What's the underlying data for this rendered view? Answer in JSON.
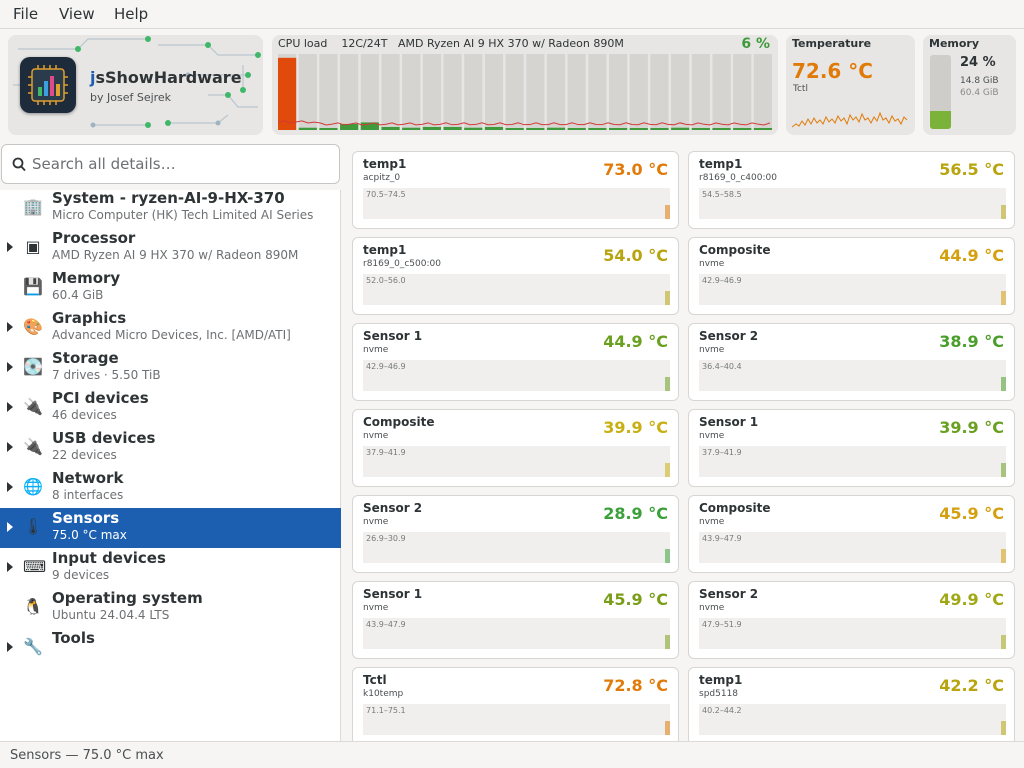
{
  "menu": {
    "file": "File",
    "view": "View",
    "help": "Help"
  },
  "app": {
    "title_prefix": "j",
    "title_rest": "sShowHardware",
    "author": "by Josef Sejrek"
  },
  "cpu": {
    "label": "CPU load",
    "threads": "12C/24T",
    "model": "AMD Ryzen AI 9 HX 370 w/ Radeon 890M",
    "percent": "6 %",
    "core_loads": [
      0.95,
      0.03,
      0.02,
      0.08,
      0.1,
      0.04,
      0.03,
      0.04,
      0.04,
      0.03,
      0.04,
      0.02,
      0.02,
      0.03,
      0.02,
      0.02,
      0.02,
      0.02,
      0.02,
      0.03,
      0.02,
      0.02,
      0.02,
      0.02
    ]
  },
  "temperature": {
    "label": "Temperature",
    "value": "72.6 °C",
    "source": "Tctl"
  },
  "memory": {
    "label": "Memory",
    "percent": "24 %",
    "used": "14.8 GiB",
    "total": "60.4 GiB",
    "fraction": 0.24
  },
  "search": {
    "placeholder": "Search all details…"
  },
  "sidebar": {
    "items": [
      {
        "title": "System - ryzen-AI-9-HX-370",
        "subtitle": "Micro Computer (HK) Tech Limited AI Series",
        "icon": "building-icon",
        "glyph": "🏢",
        "expandable": false,
        "selected": false
      },
      {
        "title": "Processor",
        "subtitle": "AMD Ryzen AI 9 HX 370 w/ Radeon 890M",
        "icon": "cpu-icon",
        "glyph": "▣",
        "expandable": true,
        "selected": false
      },
      {
        "title": "Memory",
        "subtitle": "60.4 GiB",
        "icon": "floppy-icon",
        "glyph": "💾",
        "expandable": false,
        "selected": false
      },
      {
        "title": "Graphics",
        "subtitle": "Advanced Micro Devices, Inc. [AMD/ATI]",
        "icon": "palette-icon",
        "glyph": "🎨",
        "expandable": true,
        "selected": false
      },
      {
        "title": "Storage",
        "subtitle": "7 drives  ·  5.50 TiB",
        "icon": "disk-icon",
        "glyph": "💽",
        "expandable": true,
        "selected": false
      },
      {
        "title": "PCI devices",
        "subtitle": "46 devices",
        "icon": "plug-icon",
        "glyph": "🔌",
        "expandable": true,
        "selected": false
      },
      {
        "title": "USB devices",
        "subtitle": "22 devices",
        "icon": "plug-icon",
        "glyph": "🔌",
        "expandable": true,
        "selected": false
      },
      {
        "title": "Network",
        "subtitle": "8 interfaces",
        "icon": "globe-icon",
        "glyph": "🌐",
        "expandable": true,
        "selected": false
      },
      {
        "title": "Sensors",
        "subtitle": "75.0 °C max",
        "icon": "thermometer-icon",
        "glyph": "🌡",
        "expandable": true,
        "selected": true
      },
      {
        "title": "Input devices",
        "subtitle": "9 devices",
        "icon": "keyboard-icon",
        "glyph": "⌨",
        "expandable": true,
        "selected": false
      },
      {
        "title": "Operating system",
        "subtitle": "Ubuntu 24.04.4 LTS",
        "icon": "penguin-icon",
        "glyph": "🐧",
        "expandable": false,
        "selected": false
      },
      {
        "title": "Tools",
        "subtitle": "",
        "icon": "wrench-icon",
        "glyph": "🔧",
        "expandable": true,
        "selected": false
      }
    ]
  },
  "sensors": [
    {
      "name": "temp1",
      "source": "acpitz_0",
      "value": "73.0 °C",
      "range": "70.5–74.5",
      "color": "#e07b0a"
    },
    {
      "name": "temp1",
      "source": "r8169_0_c400:00",
      "value": "56.5 °C",
      "range": "54.5–58.5",
      "color": "#b8a40e"
    },
    {
      "name": "temp1",
      "source": "r8169_0_c500:00",
      "value": "54.0 °C",
      "range": "52.0–56.0",
      "color": "#b8a40e"
    },
    {
      "name": "Composite",
      "source": "nvme",
      "value": "44.9 °C",
      "range": "42.9–46.9",
      "color": "#d4a010"
    },
    {
      "name": "Sensor 1",
      "source": "nvme",
      "value": "44.9 °C",
      "range": "42.9–46.9",
      "color": "#6aa020"
    },
    {
      "name": "Sensor 2",
      "source": "nvme",
      "value": "38.9 °C",
      "range": "36.4–40.4",
      "color": "#4a9e2a"
    },
    {
      "name": "Composite",
      "source": "nvme",
      "value": "39.9 °C",
      "range": "37.9–41.9",
      "color": "#c8b012"
    },
    {
      "name": "Sensor 1",
      "source": "nvme",
      "value": "39.9 °C",
      "range": "37.9–41.9",
      "color": "#6aa020"
    },
    {
      "name": "Sensor 2",
      "source": "nvme",
      "value": "28.9 °C",
      "range": "26.9–30.9",
      "color": "#3aa03a"
    },
    {
      "name": "Composite",
      "source": "nvme",
      "value": "45.9 °C",
      "range": "43.9–47.9",
      "color": "#d4a010"
    },
    {
      "name": "Sensor 1",
      "source": "nvme",
      "value": "45.9 °C",
      "range": "43.9–47.9",
      "color": "#7a9e1a"
    },
    {
      "name": "Sensor 2",
      "source": "nvme",
      "value": "49.9 °C",
      "range": "47.9–51.9",
      "color": "#a0a816"
    },
    {
      "name": "Tctl",
      "source": "k10temp",
      "value": "72.8 °C",
      "range": "71.1–75.1",
      "color": "#e07b0a"
    },
    {
      "name": "temp1",
      "source": "spd5118",
      "value": "42.2 °C",
      "range": "40.2–44.2",
      "color": "#b8a40e"
    }
  ],
  "status": {
    "text": "Sensors  —  75.0 °C max"
  },
  "colors": {
    "accent": "#1c5fb0",
    "cpu_bar_hot": "#e04a0a",
    "cpu_bar_low": "#3e9a3a",
    "memory_fill": "#7bb33a",
    "temp_line": "#e07b0a"
  }
}
